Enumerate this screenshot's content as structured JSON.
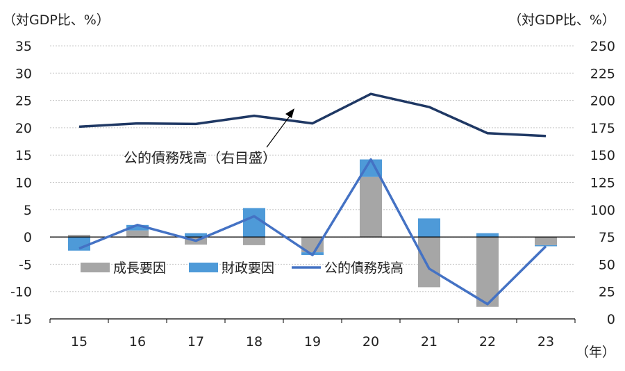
{
  "chart_data": {
    "type": "bar+line",
    "left_axis": {
      "unit_label": "（対GDP比、%）",
      "ylim": [
        -15,
        35
      ],
      "ticks": [
        "35",
        "30",
        "25",
        "20",
        "15",
        "10",
        "5",
        "0",
        "-5",
        "-10",
        "-15"
      ]
    },
    "right_axis": {
      "unit_label": "（対GDP比、%）",
      "ylim": [
        0,
        250
      ],
      "ticks": [
        "250",
        "225",
        "200",
        "175",
        "150",
        "125",
        "100",
        "75",
        "50",
        "25",
        "0"
      ]
    },
    "categories": [
      "15",
      "16",
      "17",
      "18",
      "19",
      "20",
      "21",
      "22",
      "23"
    ],
    "x_unit": "（年）",
    "series": [
      {
        "name": "成長要因",
        "kind": "bar",
        "axis": "left",
        "color": "#a6a6a6",
        "values": [
          0.4,
          1.2,
          -1.4,
          -1.5,
          -2.8,
          11.0,
          -9.2,
          -12.8,
          -1.5
        ]
      },
      {
        "name": "財政要因",
        "kind": "bar",
        "axis": "left",
        "color": "#4e9ad8",
        "values": [
          -2.5,
          1.0,
          0.7,
          5.3,
          -0.5,
          3.2,
          3.4,
          0.7,
          -0.2
        ]
      },
      {
        "name": "公的債務残高",
        "kind": "line",
        "axis": "left",
        "color": "#4472c4",
        "values": [
          -2.1,
          2.2,
          -0.7,
          3.8,
          -3.3,
          14.2,
          -5.8,
          -12.3,
          -1.7
        ]
      },
      {
        "name": "公的債務残高（右目盛）",
        "kind": "line",
        "axis": "right",
        "color": "#1f3864",
        "values": [
          176,
          179,
          178.5,
          186,
          179,
          206,
          194,
          170,
          167.5
        ]
      }
    ],
    "annotation": "公的債務残高（右目盛）",
    "legend": [
      "成長要因",
      "財政要因",
      "公的債務残高"
    ]
  }
}
